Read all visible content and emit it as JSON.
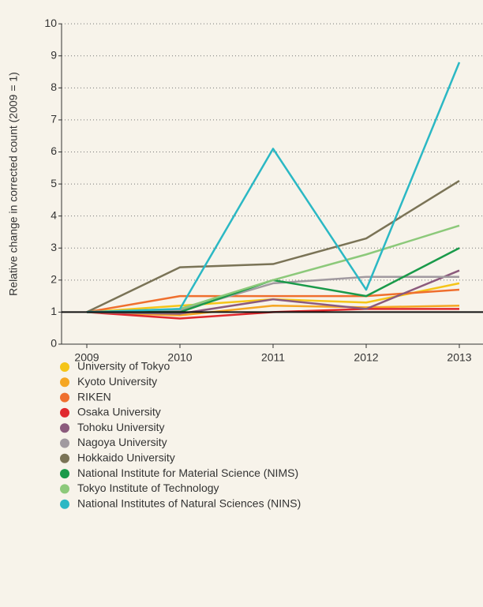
{
  "chart_data": {
    "type": "line",
    "y_label": "Relative change in corrected count (2009 = 1)",
    "categories": [
      "2009",
      "2010",
      "2011",
      "2012",
      "2013"
    ],
    "ylim": [
      0,
      10.3
    ],
    "yticks": [
      0,
      1,
      2,
      3,
      4,
      5,
      6,
      7,
      8,
      9,
      10
    ],
    "grid": true,
    "reference_line": 1,
    "legend": "bottom",
    "series": [
      {
        "name": "University of Tokyo",
        "color": "#f5c518",
        "values": [
          1,
          1.2,
          1.4,
          1.3,
          1.9
        ]
      },
      {
        "name": "Kyoto University",
        "color": "#f5a623",
        "values": [
          1,
          0.9,
          1.2,
          1.15,
          1.2
        ]
      },
      {
        "name": "RIKEN",
        "color": "#ef6f2e",
        "values": [
          1,
          1.5,
          1.5,
          1.5,
          1.7
        ]
      },
      {
        "name": "Osaka University",
        "color": "#e0292e",
        "values": [
          1,
          0.8,
          1.0,
          1.1,
          1.1
        ]
      },
      {
        "name": "Tohoku University",
        "color": "#8b5a7c",
        "values": [
          1,
          0.95,
          1.4,
          1.1,
          2.3
        ]
      },
      {
        "name": "Nagoya University",
        "color": "#a19aa0",
        "values": [
          1,
          1.05,
          1.9,
          2.1,
          2.1
        ]
      },
      {
        "name": "Hokkaido University",
        "color": "#7a7356",
        "values": [
          1,
          2.4,
          2.5,
          3.3,
          5.1
        ]
      },
      {
        "name": "National Institute for Material Science (NIMS)",
        "color": "#1a9a4a",
        "values": [
          1,
          1.0,
          2.0,
          1.5,
          3.0
        ]
      },
      {
        "name": "Tokyo Institute of Technology",
        "color": "#8cc97a",
        "values": [
          1,
          1.1,
          2.0,
          2.8,
          3.7
        ]
      },
      {
        "name": "National Institutes of Natural Sciences (NINS)",
        "color": "#2bb8c4",
        "values": [
          1,
          1.1,
          6.1,
          1.7,
          8.8
        ]
      }
    ]
  }
}
